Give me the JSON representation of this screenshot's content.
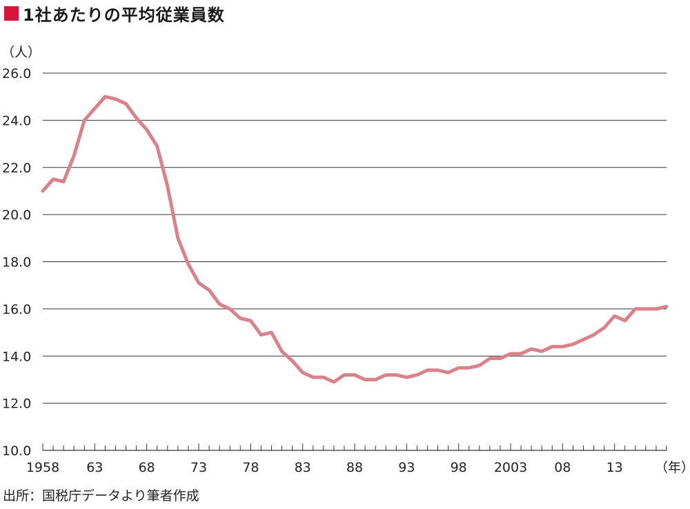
{
  "title": "1社あたりの平均従業員数",
  "source": "出所：国税庁データより筆者作成",
  "colors": {
    "marker": "#d9143c",
    "line": "#d9828b",
    "grid": "#333333",
    "text": "#222222"
  },
  "chart_data": {
    "type": "line",
    "title": "1社あたりの平均従業員数",
    "ylabel": "（人）",
    "xlabel": "（年）",
    "ylim": [
      10.0,
      26.0
    ],
    "y_ticks": [
      "10.0",
      "12.0",
      "14.0",
      "16.0",
      "18.0",
      "20.0",
      "22.0",
      "24.0",
      "26.0"
    ],
    "y_tick_values": [
      10,
      12,
      14,
      16,
      18,
      20,
      22,
      24,
      26
    ],
    "xlim": [
      1958,
      2018
    ],
    "x_ticks": [
      "1958",
      "63",
      "68",
      "73",
      "78",
      "83",
      "88",
      "93",
      "98",
      "2003",
      "08",
      "13"
    ],
    "x_tick_years": [
      1958,
      1963,
      1968,
      1973,
      1978,
      1983,
      1988,
      1993,
      1998,
      2003,
      2008,
      2013
    ],
    "grid": true,
    "legend": "none",
    "x": [
      1958,
      1959,
      1960,
      1961,
      1962,
      1963,
      1964,
      1965,
      1966,
      1967,
      1968,
      1969,
      1970,
      1971,
      1972,
      1973,
      1974,
      1975,
      1976,
      1977,
      1978,
      1979,
      1980,
      1981,
      1982,
      1983,
      1984,
      1985,
      1986,
      1987,
      1988,
      1989,
      1990,
      1991,
      1992,
      1993,
      1994,
      1995,
      1996,
      1997,
      1998,
      1999,
      2000,
      2001,
      2002,
      2003,
      2004,
      2005,
      2006,
      2007,
      2008,
      2009,
      2010,
      2011,
      2012,
      2013,
      2014,
      2015,
      2016,
      2017,
      2018
    ],
    "series": [
      {
        "values": [
          21.0,
          21.5,
          21.4,
          22.5,
          24.0,
          24.5,
          25.0,
          24.9,
          24.7,
          24.1,
          23.6,
          22.9,
          21.2,
          19.0,
          17.9,
          17.1,
          16.8,
          16.2,
          16.0,
          15.6,
          15.5,
          14.9,
          15.0,
          14.2,
          13.8,
          13.3,
          13.1,
          13.1,
          12.9,
          13.2,
          13.2,
          13.0,
          13.0,
          13.2,
          13.2,
          13.1,
          13.2,
          13.4,
          13.4,
          13.3,
          13.5,
          13.5,
          13.6,
          13.9,
          13.9,
          14.1,
          14.1,
          14.3,
          14.2,
          14.4,
          14.4,
          14.5,
          14.7,
          14.9,
          15.2,
          15.7,
          15.5,
          16.0,
          16.0,
          16.0,
          16.1
        ]
      }
    ]
  }
}
